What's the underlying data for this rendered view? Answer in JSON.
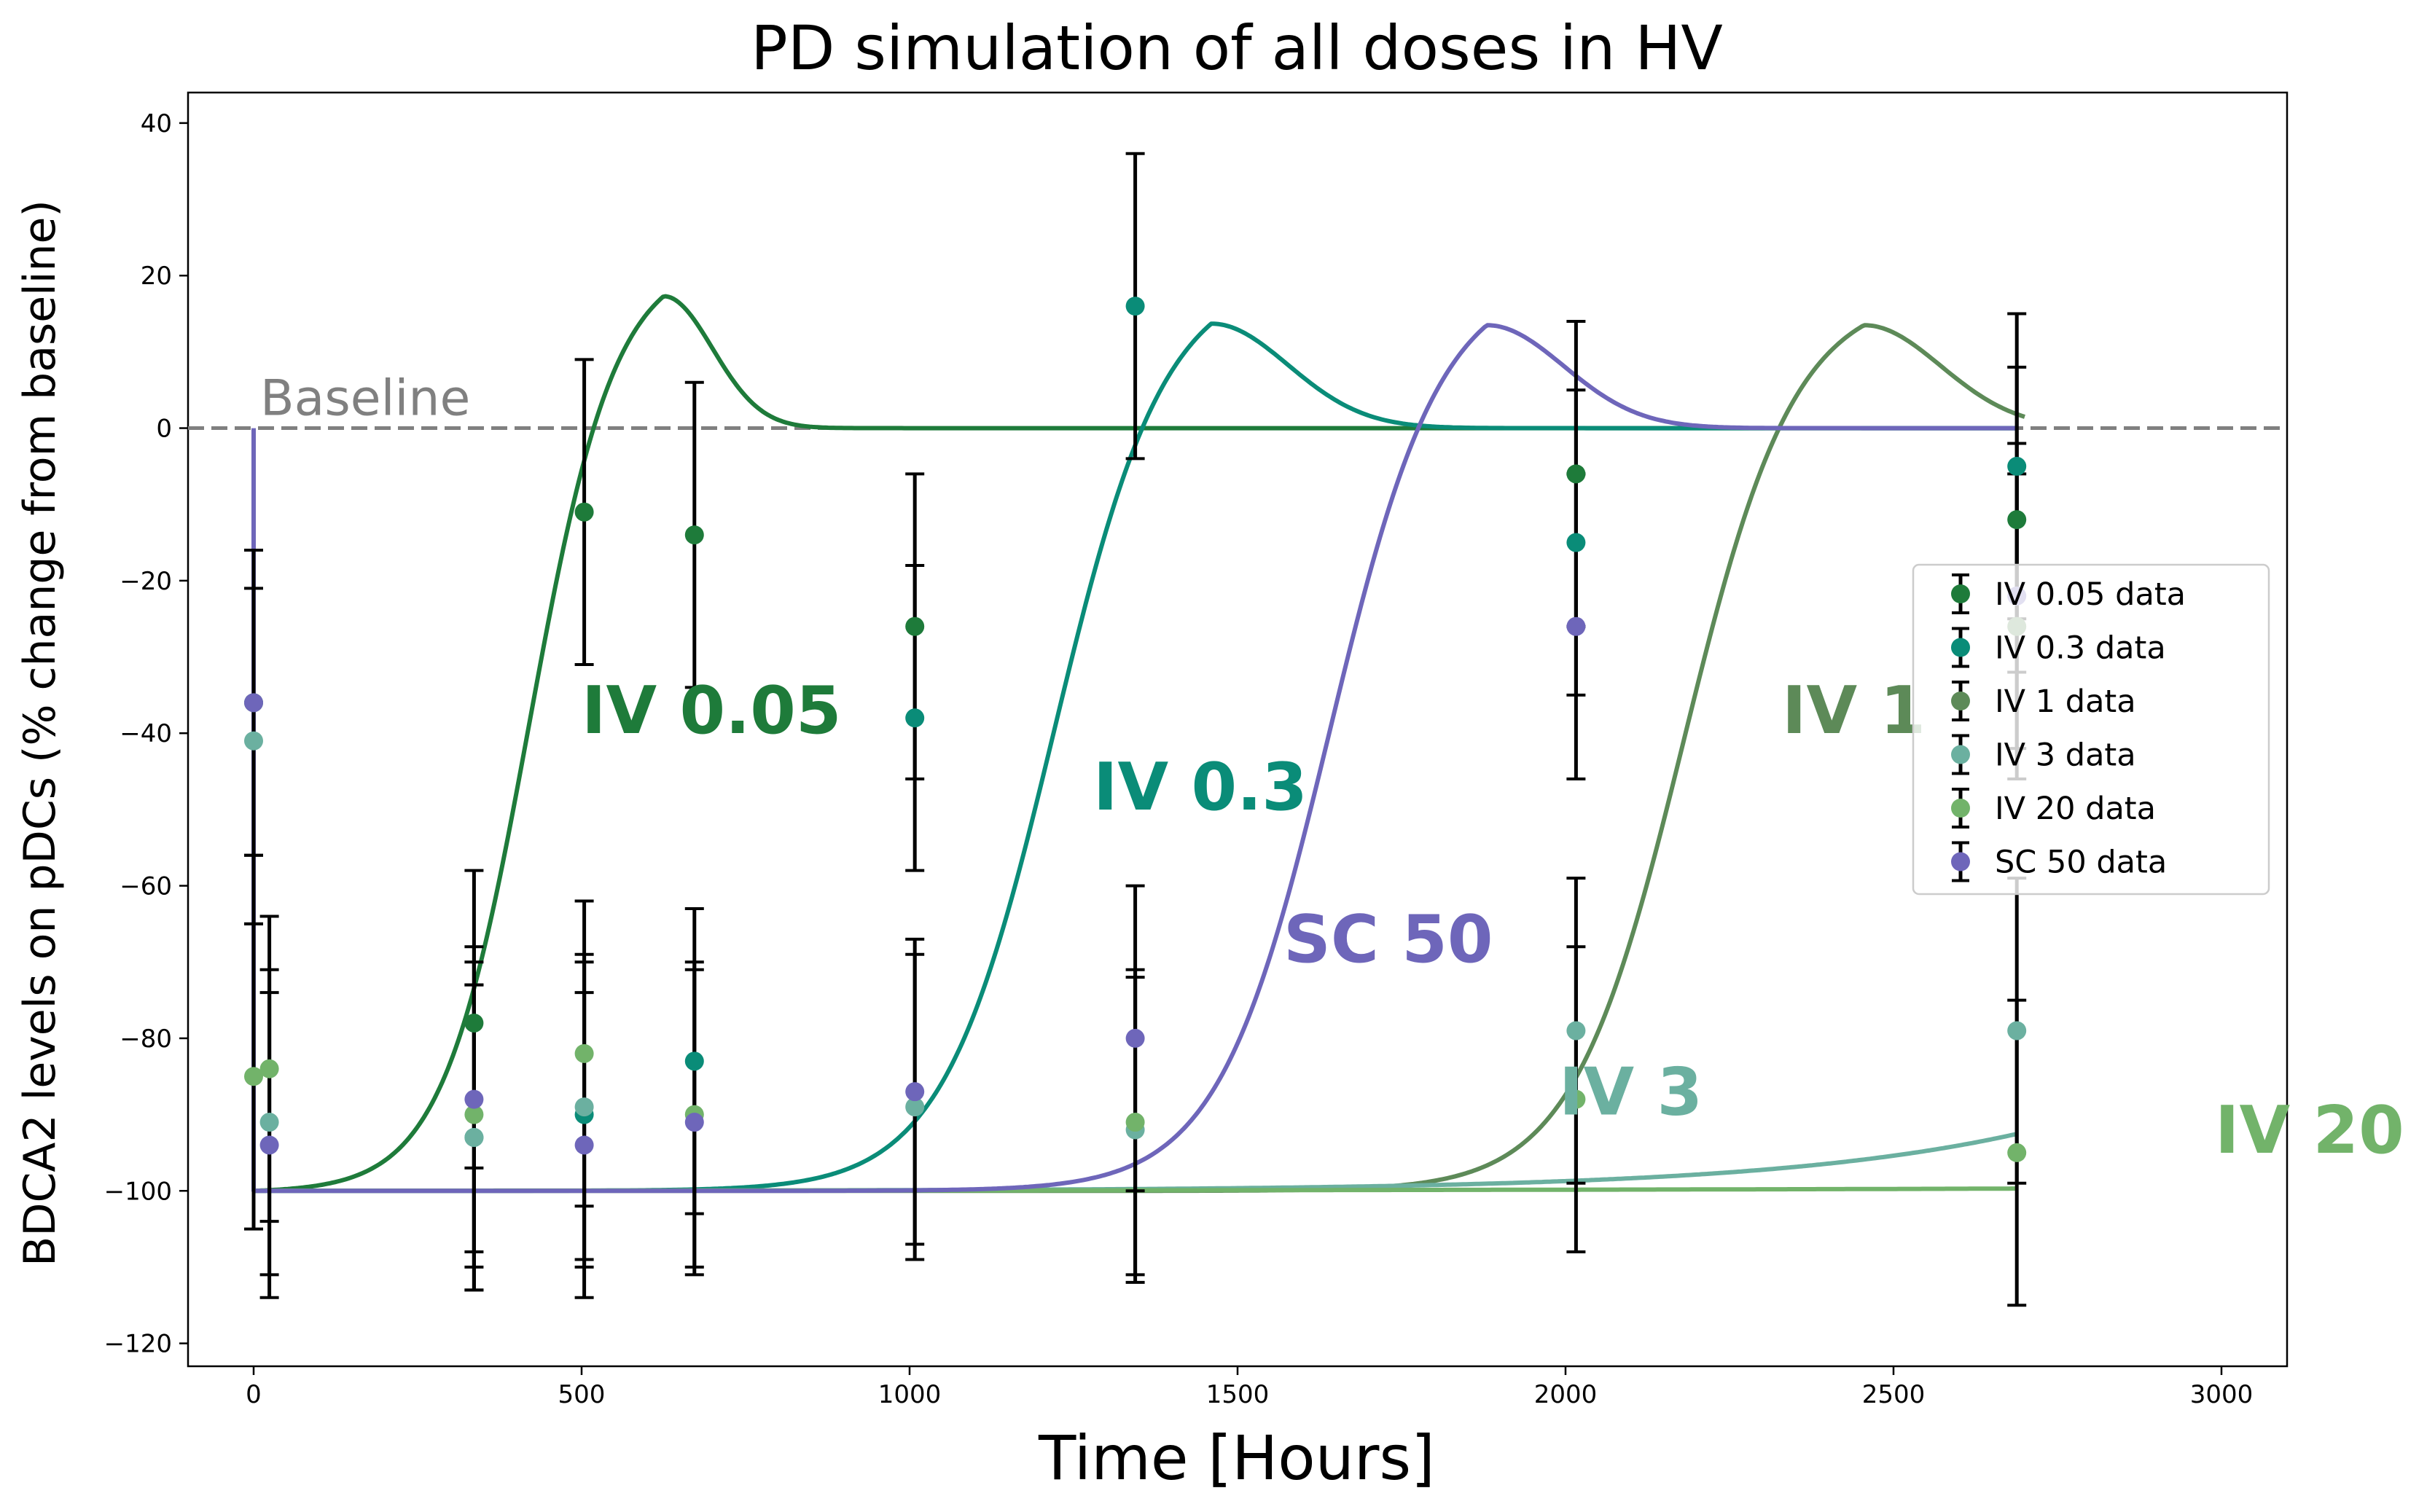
{
  "chart_data": {
    "type": "line",
    "title": "PD simulation of all doses in HV",
    "xlabel": "Time [Hours]",
    "ylabel": "BDCA2 levels on pDCs (% change from baseline)",
    "xlim": [
      -100,
      3100
    ],
    "ylim": [
      -123,
      44
    ],
    "xticks": [
      0,
      500,
      1000,
      1500,
      2000,
      2500,
      3000
    ],
    "yticks": [
      -120,
      -100,
      -80,
      -60,
      -40,
      -20,
      0,
      20,
      40
    ],
    "xtick_labels": [
      "0",
      "500",
      "1000",
      "1500",
      "2000",
      "2500",
      "3000"
    ],
    "ytick_labels": [
      "−120",
      "−100",
      "−80",
      "−60",
      "−40",
      "−20",
      "0",
      "20",
      "40"
    ],
    "baseline": {
      "y": 0,
      "label": "Baseline",
      "color": "#808080"
    },
    "legend_position": "center-right",
    "series": [
      {
        "name": "IV 0.05",
        "legend": "IV 0.05 data",
        "color": "#1e7b3a",
        "curve": {
          "peak_t": 625,
          "peak_h": 17.3,
          "center": 420,
          "rate": 0.0152,
          "decay": 105,
          "end": 2690
        },
        "annotation": {
          "text": "IV 0.05",
          "x": 500,
          "y": -40
        },
        "data": [
          {
            "t": 0,
            "y": -36,
            "lo": -56,
            "hi": -16
          },
          {
            "t": 336,
            "y": -78,
            "lo": -97,
            "hi": -58
          },
          {
            "t": 504,
            "y": -11,
            "lo": -31,
            "hi": 9
          },
          {
            "t": 672,
            "y": -14,
            "lo": -34,
            "hi": 6
          },
          {
            "t": 1008,
            "y": -26,
            "lo": -46,
            "hi": -6
          },
          {
            "t": 2016,
            "y": -6,
            "lo": -26,
            "hi": 14
          },
          {
            "t": 2688,
            "y": -12,
            "lo": -32,
            "hi": 8
          }
        ]
      },
      {
        "name": "IV 0.3",
        "legend": "IV 0.3 data",
        "color": "#0a8c78",
        "curve": {
          "peak_t": 1460,
          "peak_h": 13.7,
          "center": 1220,
          "rate": 0.0118,
          "decay": 165,
          "end": 2690
        },
        "annotation": {
          "text": "IV 0.3",
          "x": 1280,
          "y": -50
        },
        "data": [
          {
            "t": 336,
            "y": -93,
            "lo": -113,
            "hi": -73
          },
          {
            "t": 504,
            "y": -90,
            "lo": -110,
            "hi": -70
          },
          {
            "t": 672,
            "y": -83,
            "lo": -103,
            "hi": -63
          },
          {
            "t": 1008,
            "y": -38,
            "lo": -58,
            "hi": -18
          },
          {
            "t": 1344,
            "y": 16,
            "lo": -4,
            "hi": 36
          },
          {
            "t": 2016,
            "y": -15,
            "lo": -35,
            "hi": 5
          },
          {
            "t": 2688,
            "y": -5,
            "lo": -25,
            "hi": 15
          }
        ]
      },
      {
        "name": "IV 1",
        "legend": "IV 1 data",
        "color": "#5d8a58",
        "curve": {
          "peak_t": 2455,
          "peak_h": 13.5,
          "center": 2180,
          "rate": 0.0118,
          "decay": 165,
          "end": 2700
        },
        "annotation": {
          "text": "IV 1",
          "x": 2330,
          "y": -40
        },
        "data": [
          {
            "t": 2688,
            "y": -26,
            "lo": -46,
            "hi": -6
          }
        ]
      },
      {
        "name": "IV 3",
        "legend": "IV 3 data",
        "color": "#6bb0a0",
        "curve": {
          "type": "exp",
          "A": 7.5,
          "tau": 390,
          "end": 2690
        },
        "annotation": {
          "text": "IV 3",
          "x": 1990,
          "y": -90
        },
        "data": [
          {
            "t": 0,
            "y": -41,
            "lo": -65,
            "hi": -21
          },
          {
            "t": 24,
            "y": -91,
            "lo": -111,
            "hi": -71
          },
          {
            "t": 336,
            "y": -93,
            "lo": -113,
            "hi": -73
          },
          {
            "t": 504,
            "y": -89,
            "lo": -109,
            "hi": -69
          },
          {
            "t": 1008,
            "y": -89,
            "lo": -109,
            "hi": -69
          },
          {
            "t": 1344,
            "y": -92,
            "lo": -112,
            "hi": -72
          },
          {
            "t": 2016,
            "y": -79,
            "lo": -99,
            "hi": -59
          },
          {
            "t": 2688,
            "y": -79,
            "lo": -99,
            "hi": -59
          }
        ]
      },
      {
        "name": "IV 20",
        "legend": "IV 20 data",
        "color": "#72b36a",
        "curve": {
          "type": "exp",
          "A": 0.3,
          "tau": 1000,
          "end": 2690
        },
        "annotation": {
          "text": "IV 20",
          "x": 2990,
          "y": -95
        },
        "data": [
          {
            "t": 0,
            "y": -85,
            "lo": -105,
            "hi": -65
          },
          {
            "t": 24,
            "y": -84,
            "lo": -104,
            "hi": -64
          },
          {
            "t": 336,
            "y": -90,
            "lo": -110,
            "hi": -70
          },
          {
            "t": 504,
            "y": -82,
            "lo": -102,
            "hi": -62
          },
          {
            "t": 672,
            "y": -90,
            "lo": -110,
            "hi": -70
          },
          {
            "t": 1344,
            "y": -91,
            "lo": -111,
            "hi": -71
          },
          {
            "t": 2016,
            "y": -88,
            "lo": -108,
            "hi": -68
          },
          {
            "t": 2688,
            "y": -95,
            "lo": -115,
            "hi": -75
          }
        ]
      },
      {
        "name": "SC 50",
        "legend": "SC 50 data",
        "color": "#6e66ba",
        "curve": {
          "peak_t": 1880,
          "peak_h": 13.5,
          "center": 1640,
          "rate": 0.0118,
          "decay": 165,
          "end": 2690,
          "initial_drop": true
        },
        "annotation": {
          "text": "SC 50",
          "x": 1570,
          "y": -70
        },
        "data": [
          {
            "t": 0,
            "y": -36,
            "lo": -56,
            "hi": -16
          },
          {
            "t": 24,
            "y": -94,
            "lo": -114,
            "hi": -74
          },
          {
            "t": 336,
            "y": -88,
            "lo": -108,
            "hi": -68
          },
          {
            "t": 504,
            "y": -94,
            "lo": -114,
            "hi": -74
          },
          {
            "t": 672,
            "y": -91,
            "lo": -111,
            "hi": -71
          },
          {
            "t": 1008,
            "y": -87,
            "lo": -107,
            "hi": -67
          },
          {
            "t": 1344,
            "y": -80,
            "lo": -100,
            "hi": -60
          },
          {
            "t": 2016,
            "y": -26,
            "lo": -46,
            "hi": -6
          },
          {
            "t": 2688,
            "y": -22,
            "lo": -42,
            "hi": -2
          }
        ]
      }
    ]
  }
}
